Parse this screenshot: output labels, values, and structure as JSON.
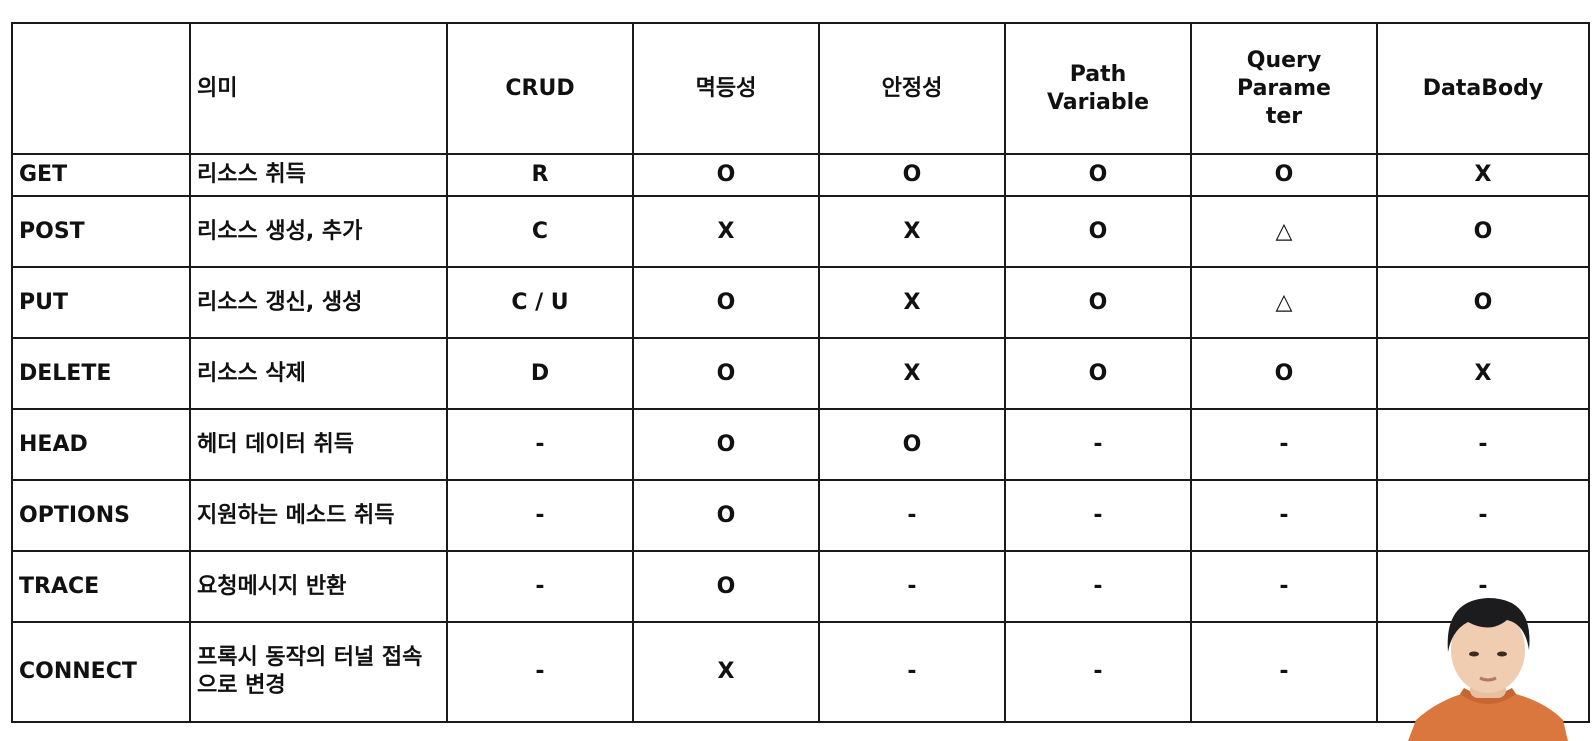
{
  "headers": [
    "",
    "의미",
    "CRUD",
    "멱등성",
    "안정성",
    "Path\nVariable",
    "Query Parame\nter",
    "DataBody"
  ],
  "rows": [
    {
      "method": "GET",
      "meaning": "리소스 취득",
      "crud": "R",
      "idempotent": "O",
      "safe": "O",
      "path_variable": "O",
      "query_parameter": "O",
      "data_body": "X"
    },
    {
      "method": "POST",
      "meaning": "리소스 생성, 추가",
      "crud": "C",
      "idempotent": "X",
      "safe": "X",
      "path_variable": "O",
      "query_parameter": "△",
      "data_body": "O"
    },
    {
      "method": "PUT",
      "meaning": "리소스 갱신, 생성",
      "crud": "C / U",
      "idempotent": "O",
      "safe": "X",
      "path_variable": "O",
      "query_parameter": "△",
      "data_body": "O"
    },
    {
      "method": "DELETE",
      "meaning": "리소스 삭제",
      "crud": "D",
      "idempotent": "O",
      "safe": "X",
      "path_variable": "O",
      "query_parameter": "O",
      "data_body": "X"
    },
    {
      "method": "HEAD",
      "meaning": "헤더 데이터 취득",
      "crud": "-",
      "idempotent": "O",
      "safe": "O",
      "path_variable": "-",
      "query_parameter": "-",
      "data_body": "-"
    },
    {
      "method": "OPTIONS",
      "meaning": "지원하는 메소드 취득",
      "crud": "-",
      "idempotent": "O",
      "safe": "-",
      "path_variable": "-",
      "query_parameter": "-",
      "data_body": "-"
    },
    {
      "method": "TRACE",
      "meaning": "요청메시지 반환",
      "crud": "-",
      "idempotent": "O",
      "safe": "-",
      "path_variable": "-",
      "query_parameter": "-",
      "data_body": "-"
    },
    {
      "method": "CONNECT",
      "meaning": "프록시 동작의 터널 접속\n으로 변경",
      "crud": "-",
      "idempotent": "X",
      "safe": "-",
      "path_variable": "-",
      "query_parameter": "-",
      "data_body": ""
    }
  ],
  "colors": {
    "border": "#1a1a1a",
    "text": "#111111",
    "background": "#ffffff",
    "sweater": "#d9773e",
    "hair": "#1c1c1e",
    "skin": "#f0cdb0"
  }
}
